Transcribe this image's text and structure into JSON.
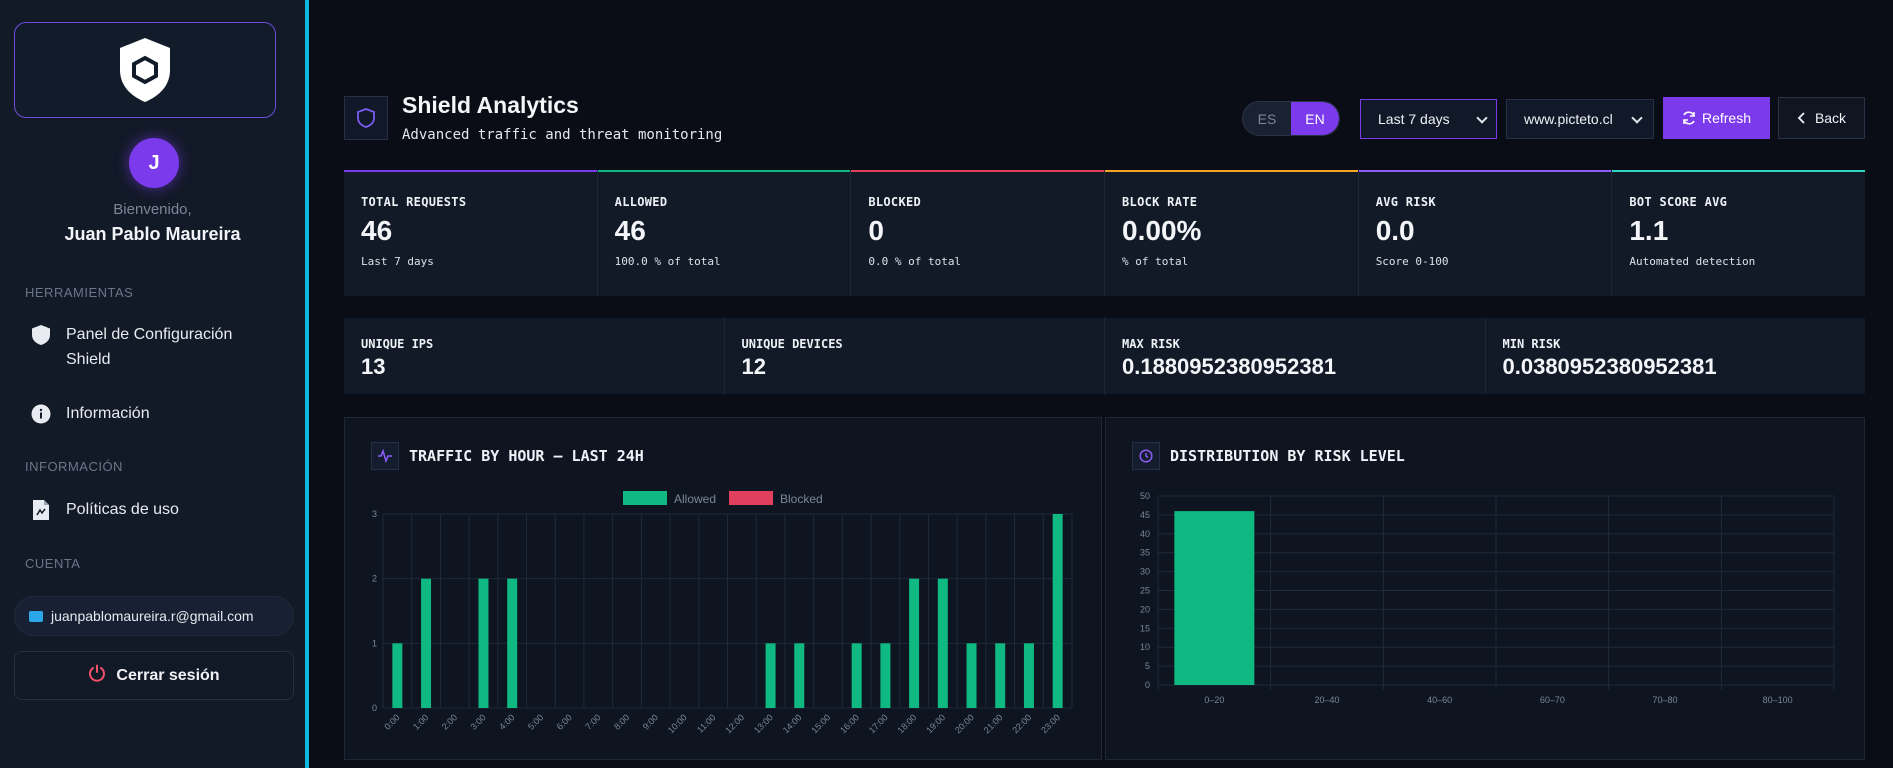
{
  "sidebar": {
    "welcome": "Bienvenido,",
    "user_initial": "J",
    "user_name": "Juan Pablo Maureira",
    "sections": {
      "tools": "HERRAMIENTAS",
      "info": "INFORMACIÓN",
      "account": "CUENTA"
    },
    "items": [
      {
        "label": "Panel de Configuración Shield",
        "icon": "shield-icon"
      },
      {
        "label": "Información",
        "icon": "info-icon"
      },
      {
        "label": "Políticas de uso",
        "icon": "document-icon"
      }
    ],
    "email": "juanpablomaureira.r@gmail.com",
    "logout": "Cerrar sesión"
  },
  "header": {
    "title": "Shield Analytics",
    "subtitle": "Advanced traffic and threat monitoring",
    "lang": {
      "es": "ES",
      "en": "EN",
      "active": "EN"
    },
    "range_select": "Last 7 days",
    "site_select": "www.picteto.cl",
    "refresh": "Refresh",
    "back": "Back"
  },
  "stats": [
    {
      "label": "TOTAL REQUESTS",
      "value": "46",
      "sub": "Last 7 days",
      "color": "#7c3aed"
    },
    {
      "label": "ALLOWED",
      "value": "46",
      "sub": "100.0 % of total",
      "color": "#10b981"
    },
    {
      "label": "BLOCKED",
      "value": "0",
      "sub": "0.0 % of total",
      "color": "#e0405e"
    },
    {
      "label": "BLOCK RATE",
      "value": "0.00%",
      "sub": "% of total",
      "color": "#f5a524"
    },
    {
      "label": "AVG RISK",
      "value": "0.0",
      "sub": "Score 0-100",
      "color": "#8b5cf6"
    },
    {
      "label": "BOT SCORE AVG",
      "value": "1.1",
      "sub": "Automated detection",
      "color": "#2dd4bf"
    }
  ],
  "stats2": [
    {
      "label": "UNIQUE IPS",
      "value": "13"
    },
    {
      "label": "UNIQUE DEVICES",
      "value": "12"
    },
    {
      "label": "MAX RISK",
      "value": "0.1880952380952381"
    },
    {
      "label": "MIN RISK",
      "value": "0.0380952380952381"
    }
  ],
  "colors": {
    "accent": "#7c3aed",
    "allowed": "#10b981",
    "blocked": "#e0405e",
    "sidebar_border": "#0fb7dd"
  },
  "chart_data": [
    {
      "type": "bar",
      "title": "TRAFFIC BY HOUR — LAST 24H",
      "categories": [
        "0:00",
        "1:00",
        "2:00",
        "3:00",
        "4:00",
        "5:00",
        "6:00",
        "7:00",
        "8:00",
        "9:00",
        "10:00",
        "11:00",
        "12:00",
        "13:00",
        "14:00",
        "15:00",
        "16:00",
        "17:00",
        "18:00",
        "19:00",
        "20:00",
        "21:00",
        "22:00",
        "23:00"
      ],
      "series": [
        {
          "name": "Allowed",
          "values": [
            1,
            2,
            0,
            2,
            2,
            0,
            0,
            0,
            0,
            0,
            0,
            0,
            0,
            1,
            1,
            0,
            1,
            1,
            2,
            2,
            1,
            1,
            1,
            3
          ]
        },
        {
          "name": "Blocked",
          "values": [
            0,
            0,
            0,
            0,
            0,
            0,
            0,
            0,
            0,
            0,
            0,
            0,
            0,
            0,
            0,
            0,
            0,
            0,
            0,
            0,
            0,
            0,
            0,
            0
          ]
        }
      ],
      "ylim": [
        0,
        3
      ],
      "yticks": [
        "0",
        "1",
        "2",
        "3"
      ],
      "legend": "top",
      "grid": true
    },
    {
      "type": "bar",
      "title": "DISTRIBUTION BY RISK LEVEL",
      "categories": [
        "0–20",
        "20–40",
        "40–60",
        "60–70",
        "70–80",
        "80–100"
      ],
      "values": [
        46,
        0,
        0,
        0,
        0,
        0
      ],
      "ylim": [
        0,
        50
      ],
      "yticks": [
        "0",
        "5",
        "10",
        "15",
        "20",
        "25",
        "30",
        "35",
        "40",
        "45",
        "50"
      ],
      "grid": true
    }
  ]
}
